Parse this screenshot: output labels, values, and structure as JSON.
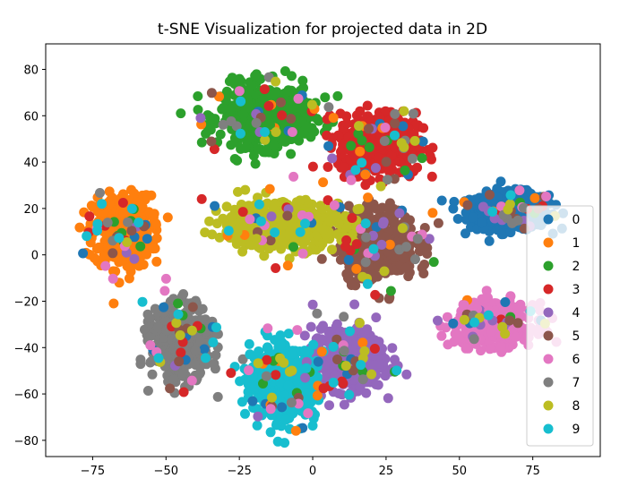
{
  "chart_data": {
    "type": "scatter",
    "title": "t-SNE Visualization for projected data in 2D",
    "xlabel": "",
    "ylabel": "",
    "xlim": [
      -91,
      98
    ],
    "ylim": [
      -87,
      91
    ],
    "xticks": [
      -75,
      -50,
      -25,
      0,
      25,
      50,
      75
    ],
    "yticks": [
      -80,
      -60,
      -40,
      -20,
      0,
      20,
      40,
      60,
      80
    ],
    "grid": false,
    "legend_position": "right",
    "series": [
      {
        "name": "0",
        "color": "#1f77b4",
        "center": [
          67,
          19
        ],
        "spread": [
          12,
          7
        ],
        "count": 520
      },
      {
        "name": "1",
        "color": "#ff7f0e",
        "center": [
          -65,
          10
        ],
        "spread": [
          9,
          14
        ],
        "count": 420
      },
      {
        "name": "2",
        "color": "#2ca02c",
        "center": [
          -16,
          60
        ],
        "spread": [
          14,
          12
        ],
        "count": 480
      },
      {
        "name": "3",
        "color": "#d62728",
        "center": [
          22,
          48
        ],
        "spread": [
          12,
          12
        ],
        "count": 480
      },
      {
        "name": "4",
        "color": "#9467bd",
        "center": [
          12,
          -45
        ],
        "spread": [
          11,
          12
        ],
        "count": 450
      },
      {
        "name": "5",
        "color": "#8c564b",
        "center": [
          22,
          5
        ],
        "spread": [
          12,
          14
        ],
        "count": 430
      },
      {
        "name": "6",
        "color": "#e377c2",
        "center": [
          62,
          -30
        ],
        "spread": [
          12,
          8
        ],
        "count": 420
      },
      {
        "name": "7",
        "color": "#7f7f7f",
        "center": [
          -45,
          -38
        ],
        "spread": [
          9,
          14
        ],
        "count": 430
      },
      {
        "name": "8",
        "color": "#bcbd22",
        "center": [
          -10,
          13
        ],
        "spread": [
          19,
          9
        ],
        "count": 520
      },
      {
        "name": "9",
        "color": "#17becf",
        "center": [
          -10,
          -55
        ],
        "spread": [
          10,
          14
        ],
        "count": 470
      }
    ]
  }
}
